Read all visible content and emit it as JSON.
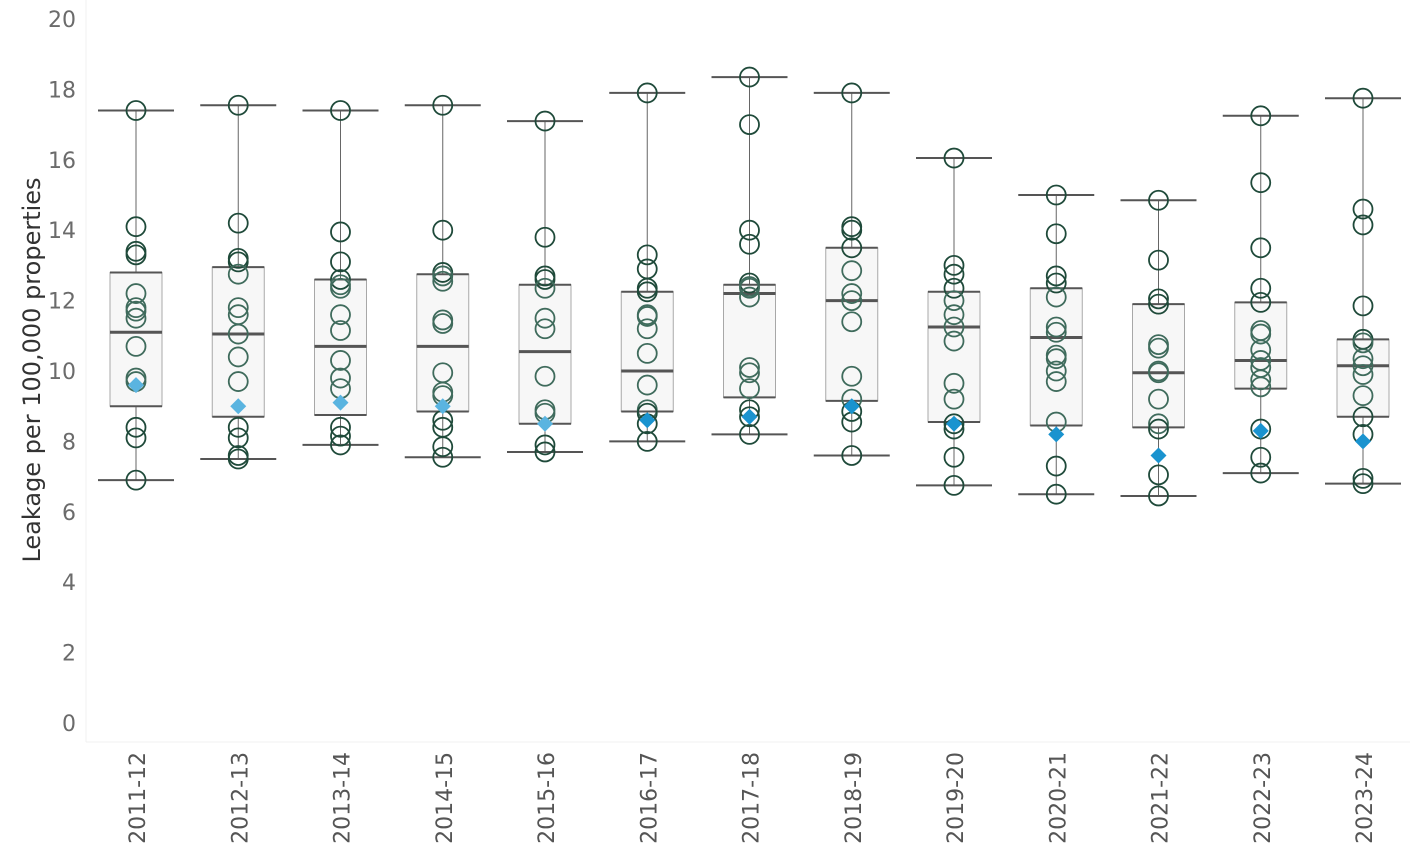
{
  "chart_data": {
    "type": "box",
    "title": "",
    "xlabel": "",
    "ylabel": "Leakage per 100,000 properties",
    "ylim": [
      0,
      20
    ],
    "yticks": [
      0,
      2,
      4,
      6,
      8,
      10,
      12,
      14,
      16,
      18,
      20
    ],
    "grid": false,
    "colors": {
      "box_fill": "#f7f7f7",
      "box_edge": "#a8a8a8",
      "median": "#555555",
      "whisker": "#555555",
      "point_edge": "#1f4a3a",
      "highlight_light": "#5ab4e0",
      "highlight_dark": "#1a93cf"
    },
    "categories": [
      "2011-12",
      "2012-13",
      "2013-14",
      "2014-15",
      "2015-16",
      "2016-17",
      "2017-18",
      "2018-19",
      "2019-20",
      "2020-21",
      "2021-22",
      "2022-23",
      "2023-24"
    ],
    "boxes": [
      {
        "category": "2011-12",
        "min": 6.9,
        "q1": 9.0,
        "median": 11.1,
        "q3": 12.8,
        "max": 17.4,
        "points": [
          17.4,
          14.1,
          13.4,
          13.3,
          12.2,
          11.8,
          11.7,
          11.5,
          10.7,
          9.8,
          9.7,
          8.4,
          8.1,
          6.9
        ],
        "highlight": 9.6
      },
      {
        "category": "2012-13",
        "min": 7.5,
        "q1": 8.7,
        "median": 11.05,
        "q3": 12.95,
        "max": 17.55,
        "points": [
          17.55,
          14.2,
          13.2,
          13.1,
          12.75,
          11.8,
          11.6,
          11.05,
          10.4,
          9.7,
          8.4,
          8.1,
          7.6,
          7.5
        ],
        "highlight": 9.0
      },
      {
        "category": "2013-14",
        "min": 7.9,
        "q1": 8.75,
        "median": 10.7,
        "q3": 12.6,
        "max": 17.4,
        "points": [
          17.4,
          13.95,
          13.1,
          12.6,
          12.45,
          12.35,
          11.6,
          11.15,
          10.3,
          9.8,
          9.5,
          8.4,
          8.15,
          7.9
        ],
        "highlight": 9.1
      },
      {
        "category": "2014-15",
        "min": 7.55,
        "q1": 8.85,
        "median": 10.7,
        "q3": 12.75,
        "max": 17.55,
        "points": [
          17.55,
          14.0,
          12.8,
          12.7,
          12.55,
          11.45,
          11.35,
          9.95,
          9.4,
          9.3,
          8.6,
          8.4,
          7.85,
          7.55
        ],
        "highlight": 9.0
      },
      {
        "category": "2015-16",
        "min": 7.7,
        "q1": 8.5,
        "median": 10.55,
        "q3": 12.45,
        "max": 17.1,
        "points": [
          17.1,
          13.8,
          12.7,
          12.6,
          12.35,
          11.5,
          11.2,
          9.85,
          8.9,
          8.8,
          7.9,
          7.7
        ],
        "highlight": 8.5
      },
      {
        "category": "2016-17",
        "min": 8.0,
        "q1": 8.85,
        "median": 10.0,
        "q3": 12.25,
        "max": 17.9,
        "points": [
          17.9,
          13.3,
          12.9,
          12.35,
          12.25,
          11.6,
          11.55,
          11.2,
          10.5,
          9.6,
          8.9,
          8.8,
          8.5,
          8.0
        ],
        "highlight": 8.6
      },
      {
        "category": "2017-18",
        "min": 8.2,
        "q1": 9.25,
        "median": 12.2,
        "q3": 12.45,
        "max": 18.35,
        "points": [
          18.35,
          17.0,
          14.0,
          13.6,
          12.5,
          12.4,
          12.35,
          12.1,
          10.1,
          9.95,
          9.5,
          8.9,
          8.7,
          8.2
        ],
        "highlight": 8.7
      },
      {
        "category": "2018-19",
        "min": 7.6,
        "q1": 9.15,
        "median": 12.0,
        "q3": 13.5,
        "max": 17.9,
        "points": [
          17.9,
          14.1,
          14.0,
          13.5,
          12.85,
          12.2,
          12.0,
          11.4,
          9.85,
          9.2,
          8.85,
          8.55,
          7.6
        ],
        "highlight": 9.0
      },
      {
        "category": "2019-20",
        "min": 6.75,
        "q1": 8.55,
        "median": 11.25,
        "q3": 12.25,
        "max": 16.05,
        "points": [
          16.05,
          13.0,
          12.75,
          12.35,
          12.0,
          11.6,
          11.25,
          10.85,
          9.65,
          9.2,
          8.5,
          8.35,
          7.55,
          6.75
        ],
        "highlight": 8.5
      },
      {
        "category": "2020-21",
        "min": 6.5,
        "q1": 8.45,
        "median": 10.95,
        "q3": 12.35,
        "max": 15.0,
        "points": [
          15.0,
          13.9,
          12.7,
          12.5,
          12.1,
          11.25,
          11.1,
          10.45,
          10.35,
          10.0,
          9.7,
          8.55,
          7.3,
          6.5
        ],
        "highlight": 8.2
      },
      {
        "category": "2021-22",
        "min": 6.45,
        "q1": 8.4,
        "median": 9.95,
        "q3": 11.9,
        "max": 14.85,
        "points": [
          14.85,
          13.15,
          12.05,
          11.9,
          10.75,
          10.65,
          10.0,
          9.95,
          9.2,
          8.5,
          8.35,
          7.05,
          6.45
        ],
        "highlight": 7.6
      },
      {
        "category": "2022-23",
        "min": 7.1,
        "q1": 9.5,
        "median": 10.3,
        "q3": 11.95,
        "max": 17.25,
        "points": [
          17.25,
          15.35,
          13.5,
          12.35,
          11.95,
          11.15,
          11.05,
          10.6,
          10.3,
          10.1,
          9.75,
          9.55,
          8.35,
          7.55,
          7.1
        ],
        "highlight": 8.3
      },
      {
        "category": "2023-24",
        "min": 6.8,
        "q1": 8.7,
        "median": 10.15,
        "q3": 10.9,
        "max": 17.75,
        "points": [
          17.75,
          14.6,
          14.15,
          11.85,
          10.9,
          10.8,
          10.35,
          10.15,
          9.9,
          9.3,
          8.7,
          8.2,
          6.95,
          6.8
        ],
        "highlight": 8.0
      }
    ]
  }
}
